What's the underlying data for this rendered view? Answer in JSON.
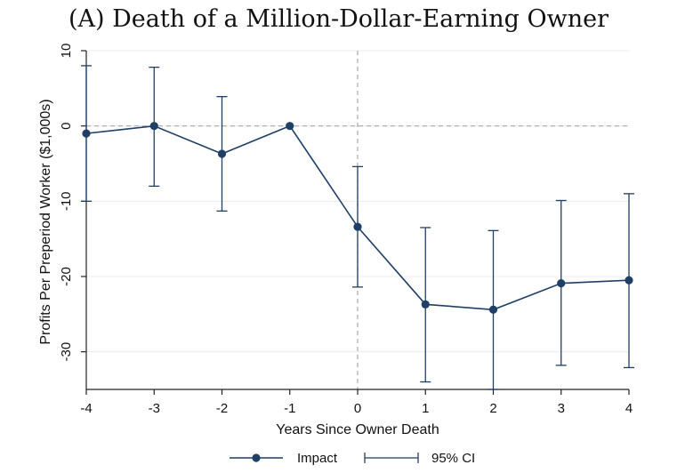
{
  "chart_data": {
    "type": "line",
    "title": "(A) Death of a Million-Dollar-Earning Owner",
    "xlabel": "Years Since Owner Death",
    "ylabel": "Profits Per Preperiod Worker ($1,000s)",
    "x": [
      -4,
      -3,
      -2,
      -1,
      0,
      1,
      2,
      3,
      4
    ],
    "xticks": [
      "-4",
      "-3",
      "-2",
      "-1",
      "0",
      "1",
      "2",
      "3",
      "4"
    ],
    "yticks": [
      "10",
      "0",
      "-10",
      "-20",
      "-30"
    ],
    "ytick_values": [
      10,
      0,
      -10,
      -20,
      -30
    ],
    "xlim": [
      -4,
      4
    ],
    "ylim": [
      -35,
      10
    ],
    "reference_lines": {
      "x": 0,
      "y": 0
    },
    "grid": "horizontal",
    "legend_position": "bottom",
    "color": "#1f3f66",
    "series": [
      {
        "name": "Impact",
        "values": [
          -1.0,
          0.0,
          -3.7,
          0.0,
          -13.4,
          -23.7,
          -24.4,
          -20.9,
          -20.5
        ],
        "ci_low": [
          -10.0,
          -8.0,
          -11.3,
          0.0,
          -21.4,
          -34.0,
          -35.0,
          -31.8,
          -32.1
        ],
        "ci_high": [
          8.0,
          7.8,
          3.9,
          0.0,
          -5.4,
          -13.5,
          -13.9,
          -9.9,
          -9.0
        ]
      }
    ],
    "legend": {
      "impact_label": "Impact",
      "ci_label": "95% CI"
    }
  }
}
